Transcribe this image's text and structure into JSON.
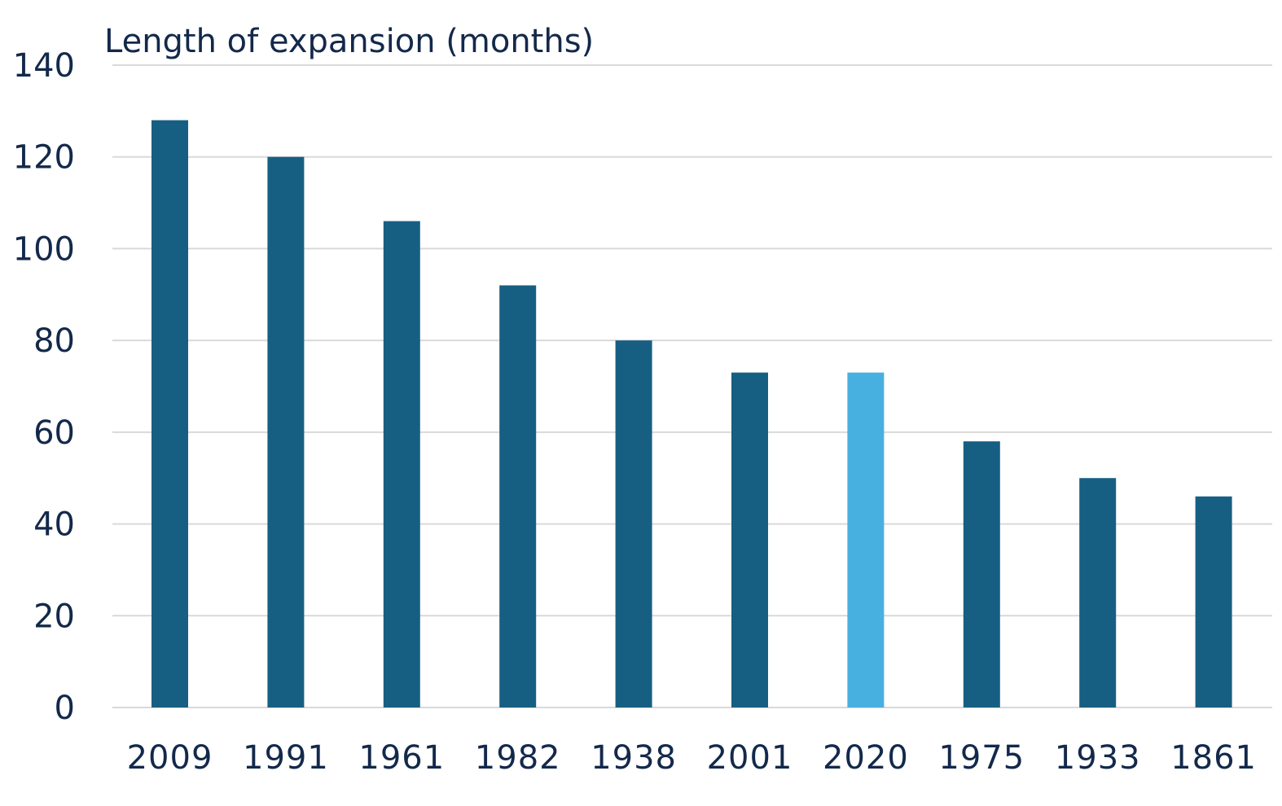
{
  "chart_data": {
    "type": "bar",
    "title": "",
    "xlabel": "",
    "ylabel": "Length of expansion (months)",
    "categories": [
      "2009",
      "1991",
      "1961",
      "1982",
      "1938",
      "2001",
      "2020",
      "1975",
      "1933",
      "1861"
    ],
    "values": [
      128,
      120,
      106,
      92,
      80,
      73,
      73,
      58,
      50,
      46
    ],
    "highlight_category": "2020",
    "ylim": [
      0,
      140
    ],
    "yticks": [
      0,
      20,
      40,
      60,
      80,
      100,
      120,
      140
    ],
    "grid": true,
    "legend": "none",
    "colors": {
      "bar": "#175f82",
      "highlight": "#48b0e0",
      "grid": "#d9d9d9",
      "text": "#13294b"
    }
  }
}
